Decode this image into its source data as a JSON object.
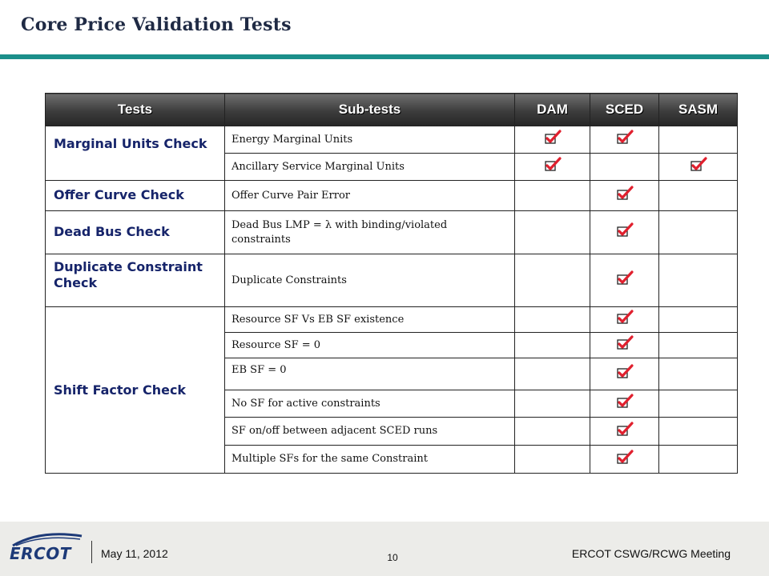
{
  "title": "Core Price Validation Tests",
  "colors": {
    "accent": "#1b8f8a",
    "heading_text": "#16246a",
    "check": "#e0202e",
    "header_bg": "#3c3c3c"
  },
  "table": {
    "headers": [
      "Tests",
      "Sub-tests",
      "DAM",
      "SCED",
      "SASM"
    ],
    "groups": [
      {
        "test": "Marginal Units Check",
        "rows": [
          {
            "sub": "Energy Marginal Units",
            "dam": true,
            "sced": true,
            "sasm": false
          },
          {
            "sub": "Ancillary Service Marginal Units",
            "dam": true,
            "sced": false,
            "sasm": true
          }
        ]
      },
      {
        "test": "Offer Curve Check",
        "rows": [
          {
            "sub": "Offer Curve Pair Error",
            "dam": false,
            "sced": true,
            "sasm": false
          }
        ]
      },
      {
        "test": "Dead Bus Check",
        "rows": [
          {
            "sub": "Dead Bus LMP = λ with binding/violated constraints",
            "dam": false,
            "sced": true,
            "sasm": false
          }
        ]
      },
      {
        "test": "Duplicate Constraint Check",
        "rows": [
          {
            "sub": "Duplicate Constraints",
            "dam": false,
            "sced": true,
            "sasm": false
          }
        ]
      },
      {
        "test": "Shift Factor Check",
        "rows": [
          {
            "sub": "Resource SF Vs  EB SF existence",
            "dam": false,
            "sced": true,
            "sasm": false
          },
          {
            "sub": "Resource SF = 0",
            "dam": false,
            "sced": true,
            "sasm": false
          },
          {
            "sub": "EB SF = 0",
            "dam": false,
            "sced": true,
            "sasm": false
          },
          {
            "sub": "No SF for active constraints",
            "dam": false,
            "sced": true,
            "sasm": false
          },
          {
            "sub": "SF on/off between adjacent SCED runs",
            "dam": false,
            "sced": true,
            "sasm": false
          },
          {
            "sub": "Multiple SFs for the same Constraint",
            "dam": false,
            "sced": true,
            "sasm": false
          }
        ]
      }
    ],
    "check_icon": "checkbox-check-icon"
  },
  "footer": {
    "logo": "ERCOT",
    "date": "May 11, 2012",
    "page": "10",
    "meeting": "ERCOT CSWG/RCWG Meeting"
  }
}
